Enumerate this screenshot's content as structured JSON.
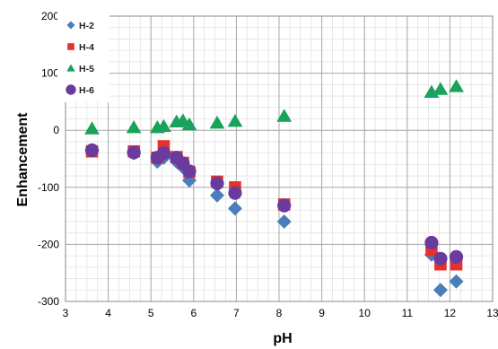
{
  "chart_data": {
    "type": "scatter",
    "title": "",
    "xlabel": "pH",
    "ylabel": "Enhancement",
    "xlim": [
      3,
      13
    ],
    "ylim": [
      -300,
      200
    ],
    "x_ticks": [
      3,
      4,
      5,
      6,
      7,
      8,
      9,
      10,
      11,
      12,
      13
    ],
    "y_ticks": [
      -300,
      -200,
      -100,
      0,
      100,
      200
    ],
    "x_tick_labels": [
      "3",
      "4",
      "5",
      "6",
      "7",
      "8",
      "9",
      "10",
      "11",
      "12",
      "13"
    ],
    "y_tick_labels": [
      "-300",
      "-200",
      "-100",
      "0",
      "100",
      "200"
    ],
    "minor_grid_x_step": 0.25,
    "minor_grid_y_step": 20,
    "grid": true,
    "legend_position": "top-left",
    "series": [
      {
        "name": "H-2",
        "marker": "diamond",
        "color": "#4a7ebb",
        "points": [
          [
            3.62,
            -35
          ],
          [
            4.6,
            -40
          ],
          [
            5.15,
            -55
          ],
          [
            5.3,
            -48
          ],
          [
            5.6,
            -55
          ],
          [
            5.75,
            -65
          ],
          [
            5.9,
            -88
          ],
          [
            6.55,
            -114
          ],
          [
            6.97,
            -137
          ],
          [
            8.12,
            -160
          ],
          [
            11.57,
            -218
          ],
          [
            11.78,
            -280
          ],
          [
            12.15,
            -265
          ]
        ]
      },
      {
        "name": "H-4",
        "marker": "square",
        "color": "#e8312d",
        "points": [
          [
            3.62,
            -37
          ],
          [
            4.6,
            -37
          ],
          [
            5.15,
            -48
          ],
          [
            5.3,
            -28
          ],
          [
            5.6,
            -47
          ],
          [
            5.75,
            -57
          ],
          [
            5.9,
            -73
          ],
          [
            6.55,
            -90
          ],
          [
            6.97,
            -100
          ],
          [
            8.12,
            -130
          ],
          [
            11.57,
            -210
          ],
          [
            11.78,
            -235
          ],
          [
            12.15,
            -235
          ]
        ]
      },
      {
        "name": "H-5",
        "marker": "triangle",
        "color": "#1aa15a",
        "points": [
          [
            3.62,
            3
          ],
          [
            4.6,
            5
          ],
          [
            5.15,
            5
          ],
          [
            5.3,
            7
          ],
          [
            5.6,
            15
          ],
          [
            5.75,
            17
          ],
          [
            5.9,
            10
          ],
          [
            6.55,
            13
          ],
          [
            6.97,
            16
          ],
          [
            8.12,
            25
          ],
          [
            11.57,
            67
          ],
          [
            11.78,
            72
          ],
          [
            12.15,
            77
          ]
        ]
      },
      {
        "name": "H-6",
        "marker": "circle",
        "color": "#6a3b9c",
        "points": [
          [
            3.62,
            -35
          ],
          [
            4.6,
            -39
          ],
          [
            5.15,
            -48
          ],
          [
            5.3,
            -40
          ],
          [
            5.6,
            -48
          ],
          [
            5.75,
            -58
          ],
          [
            5.9,
            -72
          ],
          [
            6.55,
            -93
          ],
          [
            6.97,
            -110
          ],
          [
            8.12,
            -132
          ],
          [
            11.57,
            -197
          ],
          [
            11.78,
            -225
          ],
          [
            12.15,
            -222
          ]
        ]
      }
    ]
  }
}
